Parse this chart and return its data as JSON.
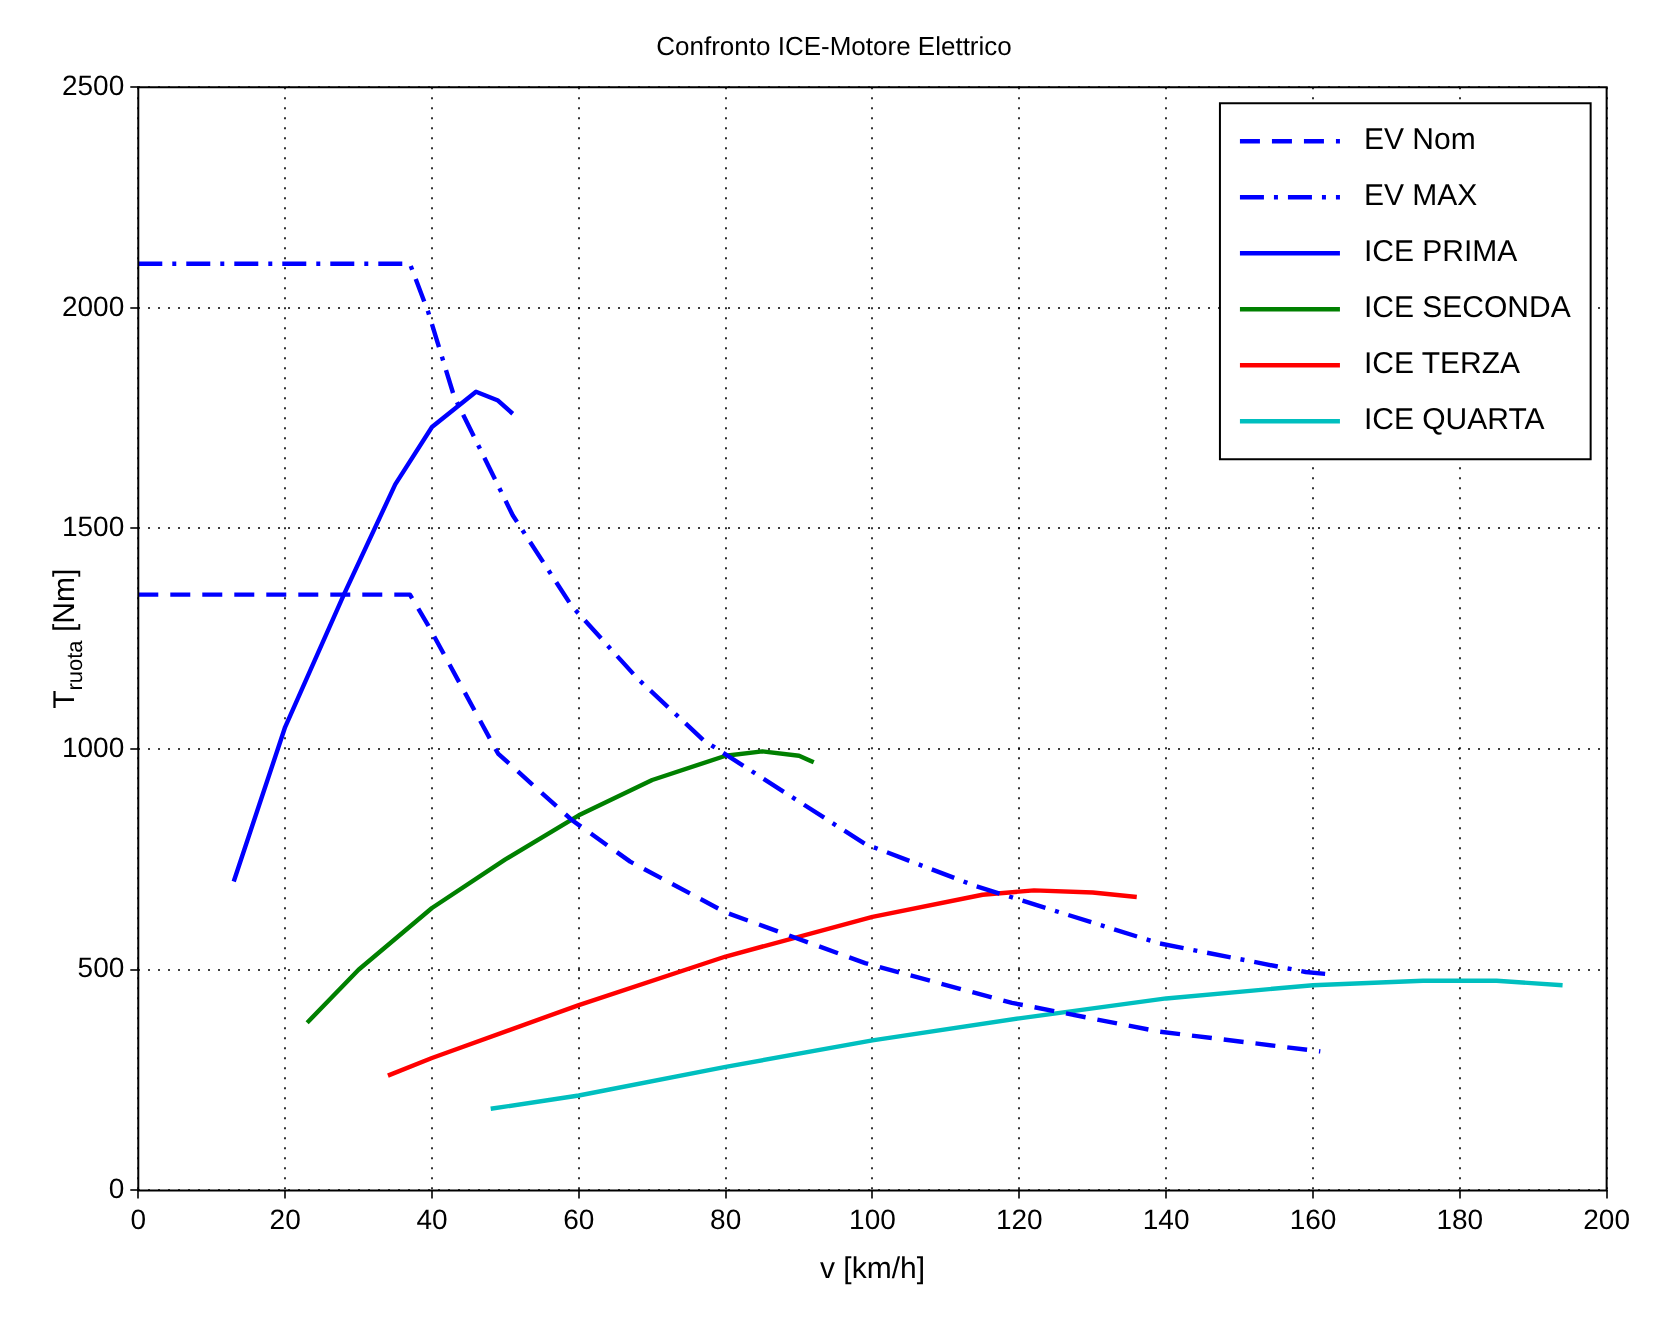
{
  "chart_data": {
    "type": "line",
    "title": "Confronto ICE-Motore Elettrico",
    "xlabel": "v [km/h]",
    "ylabel": "T$_{ruota}$ [Nm]",
    "xlim": [
      0,
      200
    ],
    "xticks": [
      0,
      20,
      40,
      60,
      80,
      100,
      120,
      140,
      160,
      180,
      200
    ],
    "ylim": [
      0,
      2500
    ],
    "yticks": [
      0,
      500,
      1000,
      1500,
      2000,
      2500
    ],
    "grid": true,
    "legend": "top right",
    "marker": "none",
    "series": [
      {
        "name": "EV Nom",
        "color": "#0000ff",
        "line_style": "dashed",
        "x": [
          0,
          37,
          39.5,
          49,
          59,
          67,
          80,
          99,
          119,
          139,
          161
        ],
        "values": [
          1350,
          1350,
          1280,
          990,
          840,
          745,
          630,
          515,
          425,
          360,
          315
        ]
      },
      {
        "name": "EV MAX",
        "color": "#0000ff",
        "line_style": "dashdot",
        "x": [
          0,
          37,
          39.5,
          43,
          51,
          59,
          68,
          77,
          99,
          114,
          139,
          159,
          162
        ],
        "values": [
          2100,
          2100,
          1990,
          1800,
          1530,
          1325,
          1160,
          1020,
          785,
          690,
          560,
          495,
          490
        ]
      },
      {
        "name": "ICE PRIMA",
        "color": "#0000ff",
        "line_style": "solid",
        "x": [
          13,
          20,
          28,
          35,
          40,
          46,
          49,
          51
        ],
        "values": [
          700,
          1050,
          1350,
          1600,
          1730,
          1810,
          1790,
          1760
        ]
      },
      {
        "name": "ICE SECONDA",
        "color": "#008000",
        "line_style": "solid",
        "x": [
          23,
          30,
          40,
          50,
          60,
          70,
          80,
          85,
          90,
          92
        ],
        "values": [
          380,
          500,
          640,
          750,
          850,
          930,
          985,
          995,
          985,
          970
        ]
      },
      {
        "name": "ICE TERZA",
        "color": "#ff0000",
        "line_style": "solid",
        "x": [
          34,
          40,
          60,
          80,
          100,
          115,
          122,
          130,
          136
        ],
        "values": [
          260,
          300,
          420,
          530,
          620,
          670,
          680,
          675,
          665
        ]
      },
      {
        "name": "ICE QUARTA",
        "color": "#00bfbf",
        "line_style": "solid",
        "x": [
          48,
          60,
          80,
          100,
          120,
          140,
          160,
          175,
          185,
          194
        ],
        "values": [
          185,
          215,
          280,
          340,
          390,
          435,
          465,
          475,
          475,
          465
        ]
      }
    ]
  }
}
